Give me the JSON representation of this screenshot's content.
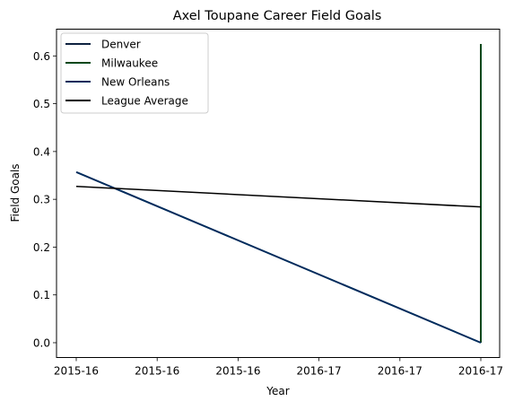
{
  "chart_data": {
    "type": "line",
    "title": "Axel Toupane Career Field Goals",
    "xlabel": "Year",
    "ylabel": "Field Goals",
    "x_tick_labels": [
      "2015-16",
      "2015-16",
      "2015-16",
      "2016-17",
      "2016-17",
      "2016-17"
    ],
    "ylim": [
      -0.031,
      0.656
    ],
    "y_ticks": [
      0.0,
      0.1,
      0.2,
      0.3,
      0.4,
      0.5,
      0.6
    ],
    "y_tick_labels": [
      "0.0",
      "0.1",
      "0.2",
      "0.3",
      "0.4",
      "0.5",
      "0.6"
    ],
    "grid": false,
    "legend_position": "upper-left",
    "series": [
      {
        "name": "Denver",
        "color": "#0e2240",
        "points": [
          {
            "x": "2015-16",
            "y": 0.357
          }
        ]
      },
      {
        "name": "Milwaukee",
        "color": "#00471b",
        "points": [
          {
            "x": "2016-17",
            "y": 0.0
          },
          {
            "x": "2016-17",
            "y": 0.625
          }
        ]
      },
      {
        "name": "New Orleans",
        "color": "#002b5c",
        "points": [
          {
            "x": "2015-16",
            "y": 0.357
          },
          {
            "x": "2016-17",
            "y": 0.0
          }
        ]
      },
      {
        "name": "League Average",
        "color": "#000000",
        "points": [
          {
            "x": "2015-16",
            "y": 0.327
          },
          {
            "x": "2016-17",
            "y": 0.284
          }
        ]
      }
    ]
  }
}
